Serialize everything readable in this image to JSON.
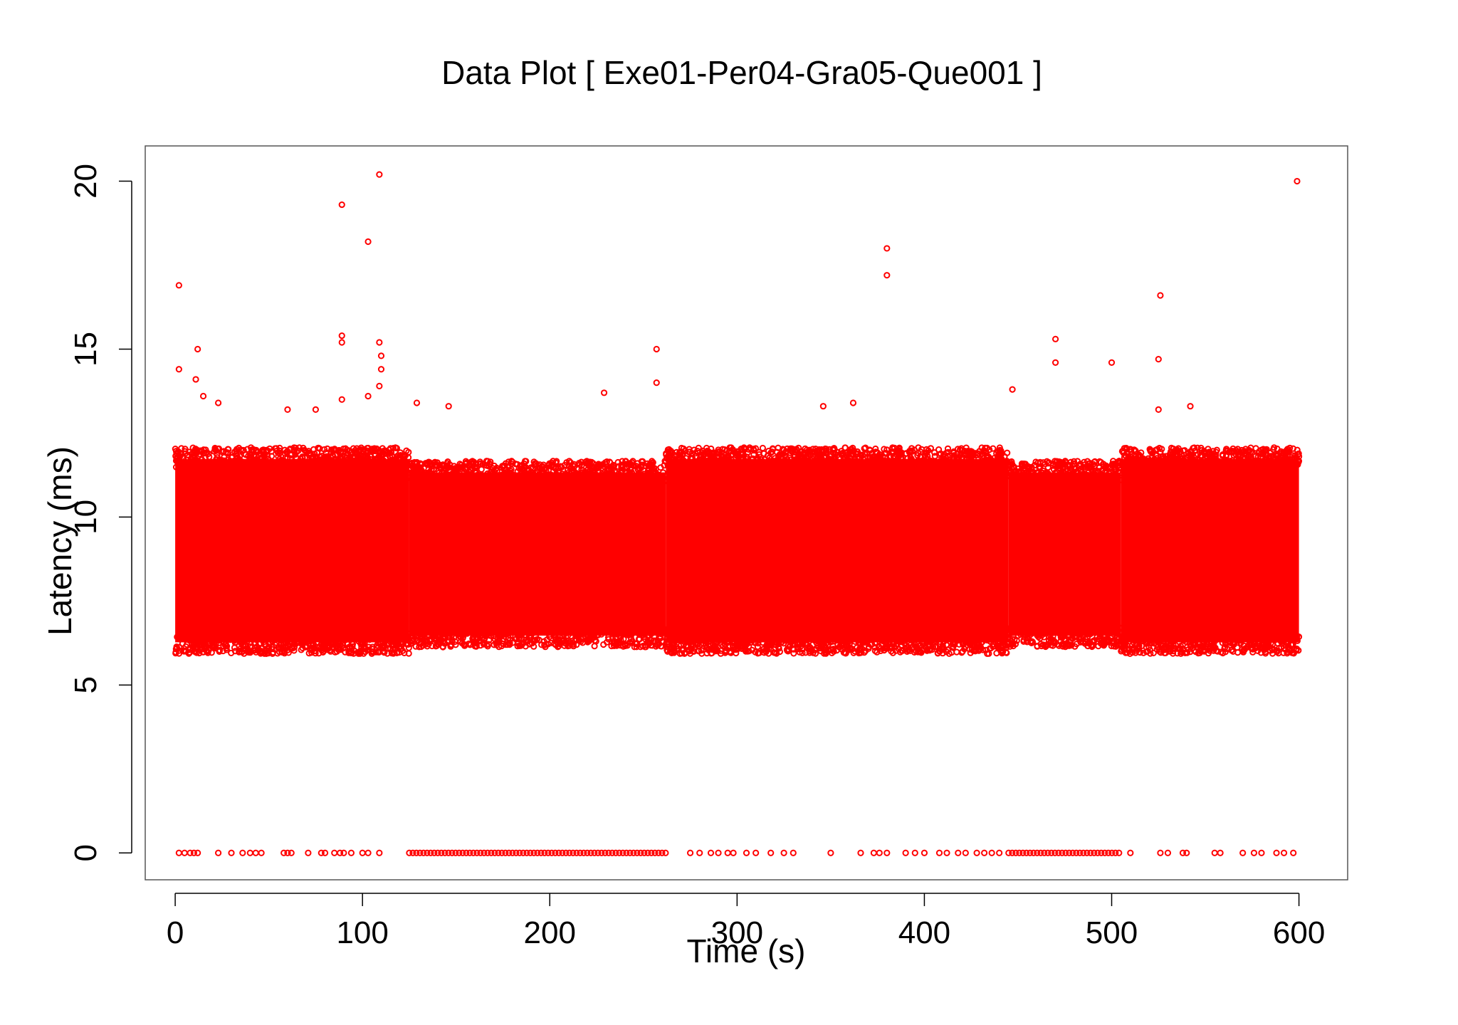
{
  "chart_data": {
    "type": "scatter",
    "title": "Data Plot [ Exe01-Per04-Gra05-Que001 ]",
    "xlabel": "Time (s)",
    "ylabel": "Latency (ms)",
    "xlim": [
      -16,
      626
    ],
    "ylim": [
      -0.8,
      21.05
    ],
    "xticks": [
      0,
      100,
      200,
      300,
      400,
      500,
      600
    ],
    "yticks": [
      0,
      5,
      10,
      15,
      20
    ],
    "grid": false,
    "legend": "none",
    "marker": "open-circle",
    "color": "#ff0000",
    "series": [
      {
        "dense_bands": [
          {
            "x": [
              0,
              125
            ],
            "y": [
              6.1,
              11.9
            ]
          },
          {
            "x": [
              125,
              262
            ],
            "y": [
              6.3,
              11.5
            ]
          },
          {
            "x": [
              262,
              445
            ],
            "y": [
              6.1,
              11.9
            ]
          },
          {
            "x": [
              445,
              505
            ],
            "y": [
              6.3,
              11.5
            ]
          },
          {
            "x": [
              505,
              600
            ],
            "y": [
              6.1,
              11.9
            ]
          }
        ],
        "zero_runs": [
          {
            "x": [
              125,
              262
            ],
            "y": 0
          },
          {
            "x": [
              445,
              505
            ],
            "y": 0
          }
        ],
        "outliers": [
          {
            "x": 2,
            "y": 16.9
          },
          {
            "x": 2,
            "y": 14.4
          },
          {
            "x": 12,
            "y": 15.0
          },
          {
            "x": 11,
            "y": 14.1
          },
          {
            "x": 15,
            "y": 13.6
          },
          {
            "x": 23,
            "y": 13.4
          },
          {
            "x": 60,
            "y": 13.2
          },
          {
            "x": 75,
            "y": 13.2
          },
          {
            "x": 89,
            "y": 19.3
          },
          {
            "x": 89,
            "y": 15.4
          },
          {
            "x": 89,
            "y": 15.2
          },
          {
            "x": 89,
            "y": 13.5
          },
          {
            "x": 103,
            "y": 18.2
          },
          {
            "x": 103,
            "y": 13.6
          },
          {
            "x": 109,
            "y": 20.2
          },
          {
            "x": 109,
            "y": 15.2
          },
          {
            "x": 110,
            "y": 14.8
          },
          {
            "x": 110,
            "y": 14.4
          },
          {
            "x": 109,
            "y": 13.9
          },
          {
            "x": 129,
            "y": 13.4
          },
          {
            "x": 146,
            "y": 13.3
          },
          {
            "x": 229,
            "y": 13.7
          },
          {
            "x": 257,
            "y": 15.0
          },
          {
            "x": 257,
            "y": 14.0
          },
          {
            "x": 346,
            "y": 13.3
          },
          {
            "x": 362,
            "y": 13.4
          },
          {
            "x": 380,
            "y": 18.0
          },
          {
            "x": 380,
            "y": 17.2
          },
          {
            "x": 447,
            "y": 13.8
          },
          {
            "x": 470,
            "y": 15.3
          },
          {
            "x": 470,
            "y": 14.6
          },
          {
            "x": 500,
            "y": 14.6
          },
          {
            "x": 526,
            "y": 16.6
          },
          {
            "x": 525,
            "y": 14.7
          },
          {
            "x": 525,
            "y": 13.2
          },
          {
            "x": 542,
            "y": 13.3
          },
          {
            "x": 599,
            "y": 20.0
          }
        ],
        "zero_scatter_x": [
          2,
          5,
          8,
          10,
          12,
          23,
          30,
          36,
          40,
          43,
          46,
          58,
          60,
          62,
          71,
          78,
          80,
          85,
          88,
          90,
          94,
          100,
          103,
          109,
          275,
          280,
          286,
          290,
          295,
          298,
          305,
          310,
          318,
          325,
          330,
          350,
          366,
          373,
          376,
          380,
          390,
          395,
          400,
          408,
          412,
          418,
          422,
          428,
          432,
          436,
          440,
          510,
          526,
          530,
          538,
          540,
          555,
          558,
          570,
          576,
          580,
          588,
          592,
          597
        ]
      }
    ]
  }
}
